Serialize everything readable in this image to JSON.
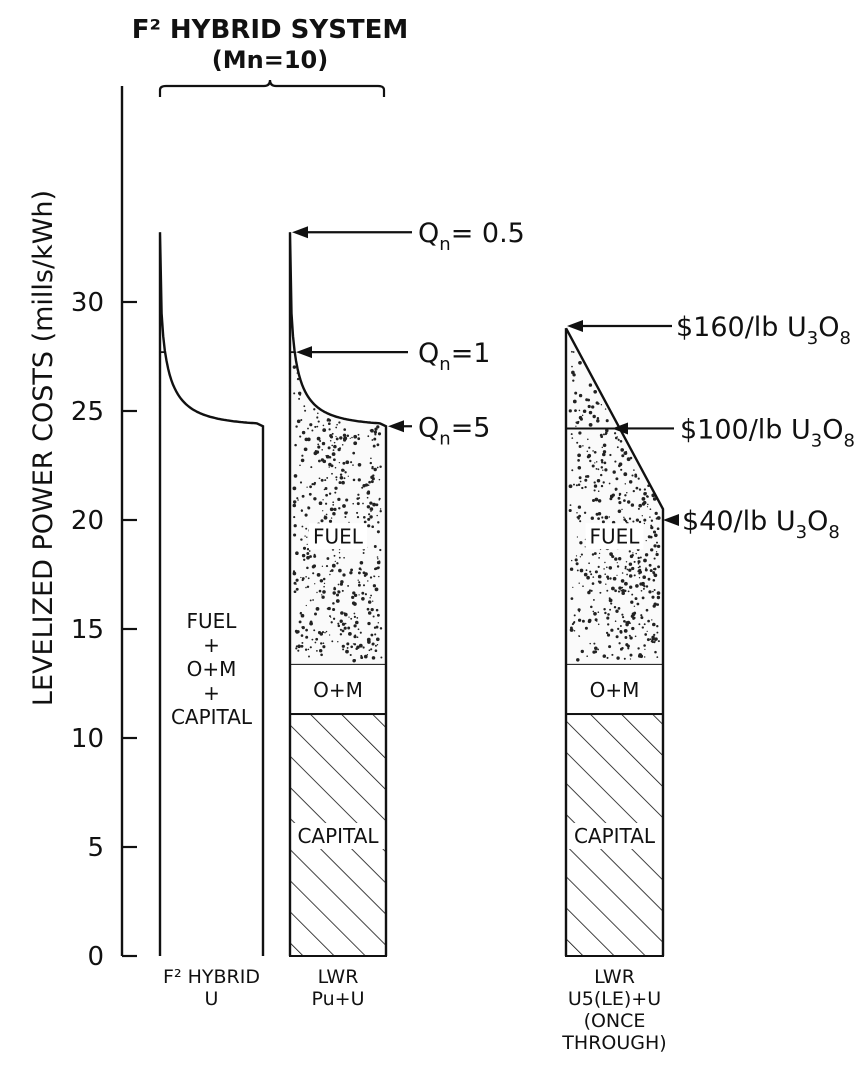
{
  "chart_data": {
    "type": "bar",
    "title": "F² HYBRID SYSTEM",
    "subtitle": "(Mn=10)",
    "ylabel": "LEVELIZED POWER COSTS (mills/kWh)",
    "ylim": [
      0,
      35
    ],
    "yticks": [
      0,
      5,
      10,
      15,
      20,
      25,
      30
    ],
    "grid": false,
    "bars": [
      {
        "id": "f2",
        "label_lines": [
          "F² HYBRID",
          "U"
        ],
        "segments": [
          {
            "name": "FUEL + O+M + CAPITAL",
            "label_lines": [
              "FUEL",
              "+",
              "O+M",
              "+",
              "CAPITAL"
            ],
            "from": 0,
            "to": 24.3,
            "fill": "none"
          }
        ],
        "curve": {
          "kind": "breeding",
          "top_left": 33.2,
          "asymptote": 24.3,
          "knee": 27.7
        }
      },
      {
        "id": "lwr_pu",
        "label_lines": [
          "LWR",
          "Pu+U"
        ],
        "segments": [
          {
            "name": "CAPITAL",
            "label_lines": [
              "CAPITAL"
            ],
            "from": 0,
            "to": 11.1,
            "fill": "hatch"
          },
          {
            "name": "O+M",
            "label_lines": [
              "O+M"
            ],
            "from": 11.1,
            "to": 13.4,
            "fill": "none"
          },
          {
            "name": "FUEL",
            "label_lines": [
              "FUEL"
            ],
            "from": 13.4,
            "to": 24.3,
            "fill": "stipple"
          }
        ],
        "curve": {
          "kind": "breeding",
          "top_left": 33.2,
          "asymptote": 24.3,
          "knee": 27.7
        },
        "annotations": [
          {
            "text": "Qn= 0.5",
            "main": "Q",
            "sub": "n",
            "rest": "= 0.5",
            "y": 33.2
          },
          {
            "text": "Qn=1",
            "main": "Q",
            "sub": "n",
            "rest": "=1",
            "y": 27.7
          },
          {
            "text": "Qn=5",
            "main": "Q",
            "sub": "n",
            "rest": "=5",
            "y": 24.3
          }
        ]
      },
      {
        "id": "lwr_u5",
        "label_lines": [
          "LWR",
          "U5(LE)+U",
          "(ONCE",
          "THROUGH)"
        ],
        "segments": [
          {
            "name": "CAPITAL",
            "label_lines": [
              "CAPITAL"
            ],
            "from": 0,
            "to": 11.1,
            "fill": "hatch"
          },
          {
            "name": "O+M",
            "label_lines": [
              "O+M"
            ],
            "from": 11.1,
            "to": 13.4,
            "fill": "none"
          },
          {
            "name": "FUEL",
            "label_lines": [
              "FUEL"
            ],
            "from": 13.4,
            "to": 20.0,
            "fill": "stipple"
          }
        ],
        "curve": {
          "kind": "linear",
          "top_left": 28.8,
          "top_right": 20.5,
          "line_at": 24.2
        },
        "annotations": [
          {
            "text": "$160/lb U3O8",
            "main": "$160/lb U",
            "sub": "3",
            "rest2": "O",
            "sub2": "8",
            "y": 28.9
          },
          {
            "text": "$100/lb U3O8",
            "main": "$100/lb U",
            "sub": "3",
            "rest2": "O",
            "sub2": "8",
            "y": 24.2
          },
          {
            "text": "$40/lb U3O8",
            "main": "$40/lb U",
            "sub": "3",
            "rest2": "O",
            "sub2": "8",
            "y": 20.0
          }
        ]
      }
    ]
  }
}
